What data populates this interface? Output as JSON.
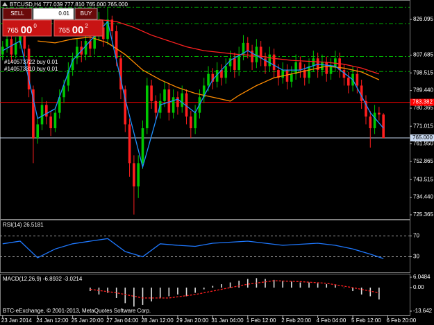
{
  "chart_data": [
    {
      "type": "candlestick",
      "title": "BTCUSD,H4 777.039 777.810 765.000 765.000",
      "trade_panel": {
        "sell": "SELL",
        "buy": "BUY",
        "lot": "0.01",
        "sell_price": [
          "765",
          "00",
          "0"
        ],
        "buy_price": [
          "765",
          "00",
          "2"
        ]
      },
      "annotations": [
        "#140573722 buy 0.01",
        "#140573310 buy 0.01"
      ],
      "footer": "BTC-eExchange, © 2001-2013, MetaQuotes Software Corp.",
      "up_color": "#00c800",
      "down_color": "#ff1e1e",
      "xlim": [
        -0.6,
        93
      ],
      "ylim": [
        723.22,
        836.1
      ],
      "xticks": [
        {
          "value": 0,
          "label": "23 Jan 2014"
        },
        {
          "value": 8,
          "label": "24 Jan 12:00"
        },
        {
          "value": 16,
          "label": "25 Jan 20:00"
        },
        {
          "value": 24,
          "label": "27 Jan 04:00"
        },
        {
          "value": 32,
          "label": "28 Jan 12:00"
        },
        {
          "value": 40,
          "label": "29 Jan 20:00"
        },
        {
          "value": 48,
          "label": "31 Jan 04:00"
        },
        {
          "value": 56,
          "label": "1 Feb 12:00"
        },
        {
          "value": 64,
          "label": "2 Feb 20:00"
        },
        {
          "value": 72,
          "label": "4 Feb 04:00"
        },
        {
          "value": 80,
          "label": "5 Feb 12:00"
        },
        {
          "value": 88,
          "label": "6 Feb 20:00"
        }
      ],
      "yticks": [
        826.095,
        807.685,
        798.515,
        {
          "value": 789.44,
          "label": "789.440"
        },
        780.365,
        771.015,
        {
          "value": 761.95,
          "label": "761.950"
        },
        752.865,
        743.515,
        {
          "value": 734.44,
          "label": "734.440"
        },
        725.365
      ],
      "levels": [
        {
          "price": 832.4,
          "color": "#00b400",
          "dashed": true
        },
        {
          "price": 823.9,
          "color": "#00b400",
          "dashed": true
        },
        {
          "price": 807.0,
          "color": "#00b400",
          "dashed": true
        },
        {
          "price": 799.2,
          "color": "#00b400",
          "dashed": true
        },
        {
          "price": 783.382,
          "color": "#ff0000",
          "label": "783.382",
          "text_color": "#ffffff"
        },
        {
          "price": 765,
          "color": "#c8d8f0",
          "label": "765.000",
          "text_color": "#000000"
        }
      ],
      "ohlc": [
        [
          808,
          815,
          805,
          812
        ],
        [
          812,
          819,
          809,
          816
        ],
        [
          816,
          818,
          804,
          808
        ],
        [
          808,
          817,
          806,
          814
        ],
        [
          814,
          822,
          811,
          818
        ],
        [
          818,
          820,
          807,
          811
        ],
        [
          811,
          813,
          786,
          790
        ],
        [
          790,
          792,
          752,
          765
        ],
        [
          765,
          776,
          762,
          772
        ],
        [
          772,
          786,
          769,
          782
        ],
        [
          782,
          784,
          772,
          776
        ],
        [
          776,
          779,
          766,
          770
        ],
        [
          770,
          781,
          768,
          778
        ],
        [
          778,
          790,
          775,
          786
        ],
        [
          786,
          795,
          783,
          792
        ],
        [
          792,
          804,
          789,
          800
        ],
        [
          800,
          809,
          797,
          806
        ],
        [
          806,
          816,
          803,
          812
        ],
        [
          812,
          815,
          804,
          808
        ],
        [
          808,
          819,
          805,
          815
        ],
        [
          815,
          818,
          807,
          811
        ],
        [
          811,
          822,
          808,
          818
        ],
        [
          818,
          830,
          815,
          822
        ],
        [
          822,
          825,
          812,
          816
        ],
        [
          816,
          832,
          813,
          826
        ],
        [
          826,
          828,
          816,
          820
        ],
        [
          820,
          823,
          802,
          806
        ],
        [
          806,
          808,
          785,
          790
        ],
        [
          790,
          792,
          768,
          772
        ],
        [
          772,
          775,
          745,
          752
        ],
        [
          752,
          756,
          725.5,
          740
        ],
        [
          740,
          756,
          734,
          752
        ],
        [
          752,
          774,
          749,
          770
        ],
        [
          770,
          796,
          767,
          792
        ],
        [
          792,
          795,
          780,
          784
        ],
        [
          784,
          787,
          774,
          778
        ],
        [
          778,
          788,
          775,
          784
        ],
        [
          784,
          794,
          781,
          790
        ],
        [
          790,
          793,
          774,
          778
        ],
        [
          778,
          790,
          775,
          786
        ],
        [
          786,
          789,
          777,
          781
        ],
        [
          781,
          792,
          778,
          788
        ],
        [
          788,
          790,
          772,
          776
        ],
        [
          776,
          779,
          765,
          770
        ],
        [
          770,
          782,
          767,
          778
        ],
        [
          778,
          790,
          775,
          786
        ],
        [
          786,
          796,
          783,
          792
        ],
        [
          792,
          802,
          789,
          798
        ],
        [
          798,
          801,
          790,
          794
        ],
        [
          794,
          804,
          791,
          800
        ],
        [
          800,
          803,
          792,
          796
        ],
        [
          796,
          806,
          793,
          802
        ],
        [
          802,
          810,
          799,
          806
        ],
        [
          806,
          809,
          796,
          800
        ],
        [
          800,
          812,
          797,
          808
        ],
        [
          808,
          818,
          805,
          814
        ],
        [
          814,
          817,
          806,
          810
        ],
        [
          810,
          813,
          800,
          804
        ],
        [
          804,
          816,
          801,
          812
        ],
        [
          812,
          815,
          802,
          806
        ],
        [
          806,
          809,
          798,
          802
        ],
        [
          802,
          812,
          799,
          808
        ],
        [
          808,
          811,
          796,
          800
        ],
        [
          800,
          803,
          792,
          796
        ],
        [
          796,
          804,
          793,
          800
        ],
        [
          800,
          803,
          790,
          794
        ],
        [
          794,
          802,
          791,
          798
        ],
        [
          798,
          808,
          795,
          804
        ],
        [
          804,
          807,
          796,
          800
        ],
        [
          800,
          803,
          792,
          796
        ],
        [
          796,
          806,
          793,
          802
        ],
        [
          802,
          810,
          799,
          806
        ],
        [
          806,
          809,
          796,
          800
        ],
        [
          800,
          808,
          797,
          804
        ],
        [
          804,
          807,
          794,
          798
        ],
        [
          798,
          806,
          795,
          802
        ],
        [
          802,
          810,
          799,
          806
        ],
        [
          806,
          809,
          796,
          800
        ],
        [
          800,
          803,
          792,
          796
        ],
        [
          796,
          799,
          788,
          792
        ],
        [
          792,
          802,
          789,
          798
        ],
        [
          798,
          801,
          788,
          792
        ],
        [
          792,
          795,
          780,
          784
        ],
        [
          784,
          787,
          772,
          776
        ],
        [
          776,
          779,
          760,
          770
        ],
        [
          770,
          782,
          767,
          778
        ],
        [
          778,
          781,
          774,
          777.039
        ],
        [
          777.039,
          777.81,
          765,
          765
        ]
      ],
      "lines": [
        {
          "color": "#ff2020",
          "x": [
            22,
            26,
            30,
            34,
            38,
            42,
            46,
            50,
            54,
            58,
            62,
            66,
            70,
            74,
            78,
            82,
            86
          ],
          "values": [
            826,
            825,
            822,
            818,
            815,
            812,
            810,
            809,
            808,
            807.5,
            806,
            805,
            804.5,
            804,
            803,
            801,
            798
          ]
        },
        {
          "color": "#ff8c00",
          "x": [
            8,
            12,
            16,
            20,
            24,
            28,
            32,
            36,
            40,
            44,
            48,
            52,
            54,
            58,
            62,
            66,
            70,
            74,
            78,
            82,
            86
          ],
          "values": [
            815,
            814,
            816,
            817,
            814,
            808,
            800,
            795,
            791,
            788,
            786,
            784,
            787,
            792,
            796,
            798,
            800,
            802,
            801,
            799,
            795
          ]
        },
        {
          "color": "#1e90ff",
          "x": [
            0,
            4,
            8,
            12,
            16,
            20,
            24,
            28,
            32,
            36,
            40,
            44,
            48,
            52,
            56,
            60,
            64,
            68,
            72,
            76,
            80,
            84,
            87
          ],
          "values": [
            810,
            815,
            775,
            780,
            805,
            815,
            825,
            785,
            750,
            782,
            785,
            778,
            795,
            805,
            810,
            805,
            800,
            800,
            803,
            802,
            795,
            778,
            770
          ]
        }
      ]
    },
    {
      "type": "line",
      "title": "RSI(14) 26.5181",
      "xlim": [
        -0.6,
        93
      ],
      "ylim": [
        0,
        100
      ],
      "yticks": [
        70,
        30
      ],
      "tick_lines": true,
      "series": [
        {
          "color": "#1e78ff",
          "x": [
            0,
            4,
            8,
            12,
            16,
            20,
            24,
            28,
            32,
            36,
            40,
            44,
            48,
            52,
            56,
            60,
            64,
            68,
            72,
            76,
            80,
            84,
            87
          ],
          "values": [
            55,
            60,
            28,
            45,
            55,
            60,
            65,
            40,
            30,
            55,
            52,
            50,
            56,
            58,
            60,
            56,
            52,
            54,
            56,
            52,
            45,
            35,
            26.5181
          ]
        }
      ]
    },
    {
      "type": "bar",
      "title": "MACD(12,26,9) -6.8932 -3.0214",
      "xlim": [
        -0.6,
        93
      ],
      "ylim": [
        -16.05,
        7.66
      ],
      "yticks": [
        6.0484,
        {
          "value": 0,
          "label": "0.00"
        },
        -13.642
      ],
      "histogram": {
        "color": "#e0e0e0",
        "x": [
          20,
          22,
          24,
          26,
          28,
          30,
          32,
          34,
          36,
          38,
          40,
          42,
          44,
          46,
          48,
          50,
          52,
          54,
          56,
          58,
          60,
          62,
          64,
          66,
          68,
          70,
          72,
          74,
          76,
          78,
          80,
          82,
          84,
          86
        ],
        "values": [
          -2,
          -4,
          -3,
          -6,
          -9,
          -11,
          -10,
          -8,
          -6,
          -5,
          -4,
          -5,
          -3,
          -1,
          1,
          2,
          3,
          4,
          5,
          5.5,
          5,
          4.5,
          4,
          3.5,
          3,
          3,
          2.5,
          2,
          1.5,
          0,
          -2,
          -4,
          -5,
          -6.8932
        ]
      },
      "signal": {
        "color": "#ff2020",
        "dashed": true,
        "x": [
          20,
          26,
          32,
          38,
          44,
          50,
          56,
          62,
          68,
          74,
          80,
          86
        ],
        "values": [
          -1,
          -3,
          -6,
          -6,
          -4,
          -1,
          2,
          4,
          3.5,
          2.5,
          0,
          -3.0214
        ]
      }
    }
  ]
}
